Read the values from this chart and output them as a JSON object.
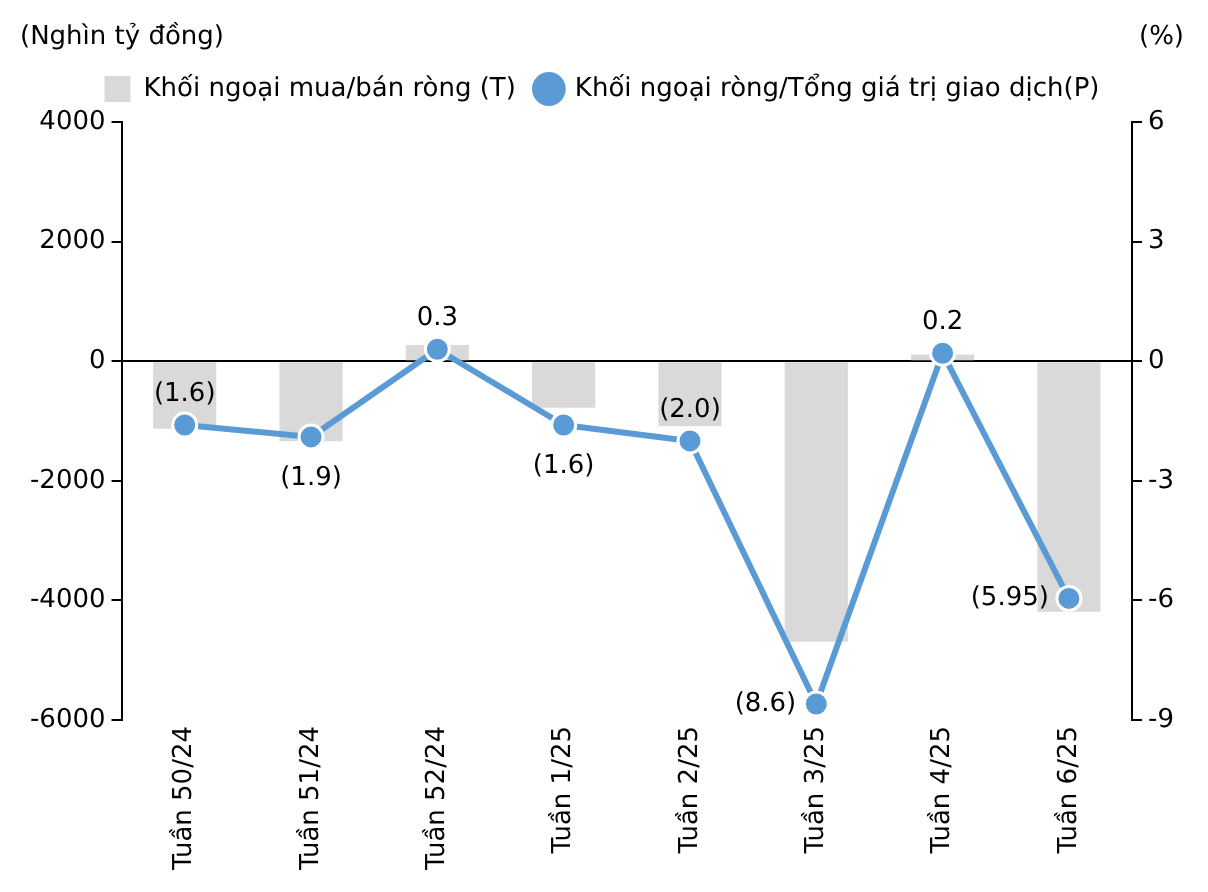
{
  "chart_data": {
    "type": "bar",
    "ylabel": "(Nghìn tỷ đồng)",
    "y2label": "(%)",
    "categories": [
      "Tuần 50/24",
      "Tuần 51/24",
      "Tuần 52/24",
      "Tuần 1/25",
      "Tuần 2/25",
      "Tuần 3/25",
      "Tuần 4/25",
      "Tuần 6/25"
    ],
    "series": [
      {
        "name": "Khối ngoại mua/bán ròng (T)",
        "color": "#d9d9d9",
        "values": [
          -1130,
          -1340,
          270,
          -780,
          -1090,
          -4690,
          110,
          -4190
        ]
      },
      {
        "name": "Khối ngoại ròng/Tổng giá trị giao dịch(P)",
        "type": "line",
        "axis": "y2",
        "color": "#5b9bd5",
        "marker": "circle",
        "values": [
          -1.6,
          -1.9,
          0.3,
          -1.6,
          -2.0,
          -8.6,
          0.2,
          -5.95
        ],
        "value_labels": [
          "(1.6)",
          "(1.9)",
          "0.3",
          "(1.6)",
          "(2.0)",
          "(8.6)",
          "0.2",
          "(5.95)"
        ]
      }
    ],
    "ylim": [
      -6000,
      4000
    ],
    "yticks": [
      -6000,
      -4000,
      -2000,
      0,
      2000,
      4000
    ],
    "y2lim": [
      -9,
      6
    ],
    "y2ticks": [
      -9,
      -6,
      -3,
      0,
      3,
      6
    ],
    "legend": "top"
  }
}
